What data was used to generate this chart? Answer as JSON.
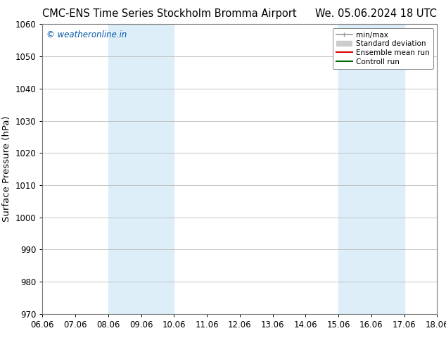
{
  "title_left": "CMC-ENS Time Series Stockholm Bromma Airport",
  "title_right": "We. 05.06.2024 18 UTC",
  "ylabel": "Surface Pressure (hPa)",
  "ylim": [
    970,
    1060
  ],
  "yticks": [
    970,
    980,
    990,
    1000,
    1010,
    1020,
    1030,
    1040,
    1050,
    1060
  ],
  "xtick_labels": [
    "06.06",
    "07.06",
    "08.06",
    "09.06",
    "10.06",
    "11.06",
    "12.06",
    "13.06",
    "14.06",
    "15.06",
    "16.06",
    "17.06",
    "18.06"
  ],
  "xtick_positions": [
    0,
    1,
    2,
    3,
    4,
    5,
    6,
    7,
    8,
    9,
    10,
    11,
    12
  ],
  "shaded_bands": [
    {
      "x_start": 2,
      "x_end": 3,
      "color": "#ddeef8"
    },
    {
      "x_start": 3,
      "x_end": 4,
      "color": "#ddeef8"
    },
    {
      "x_start": 9,
      "x_end": 10,
      "color": "#ddeef8"
    },
    {
      "x_start": 10,
      "x_end": 11,
      "color": "#ddeef8"
    }
  ],
  "watermark_text": "© weatheronline.in",
  "watermark_color": "#0055aa",
  "background_color": "#ffffff",
  "plot_bg_color": "#ffffff",
  "grid_color": "#bbbbbb",
  "legend_items": [
    {
      "label": "min/max",
      "color": "#999999",
      "lw": 1.2
    },
    {
      "label": "Standard deviation",
      "color": "#cccccc",
      "lw": 6
    },
    {
      "label": "Ensemble mean run",
      "color": "#dd0000",
      "lw": 1.5
    },
    {
      "label": "Controll run",
      "color": "#006600",
      "lw": 1.5
    }
  ],
  "title_fontsize": 10.5,
  "tick_fontsize": 8.5,
  "ylabel_fontsize": 9.5,
  "watermark_fontsize": 8.5
}
